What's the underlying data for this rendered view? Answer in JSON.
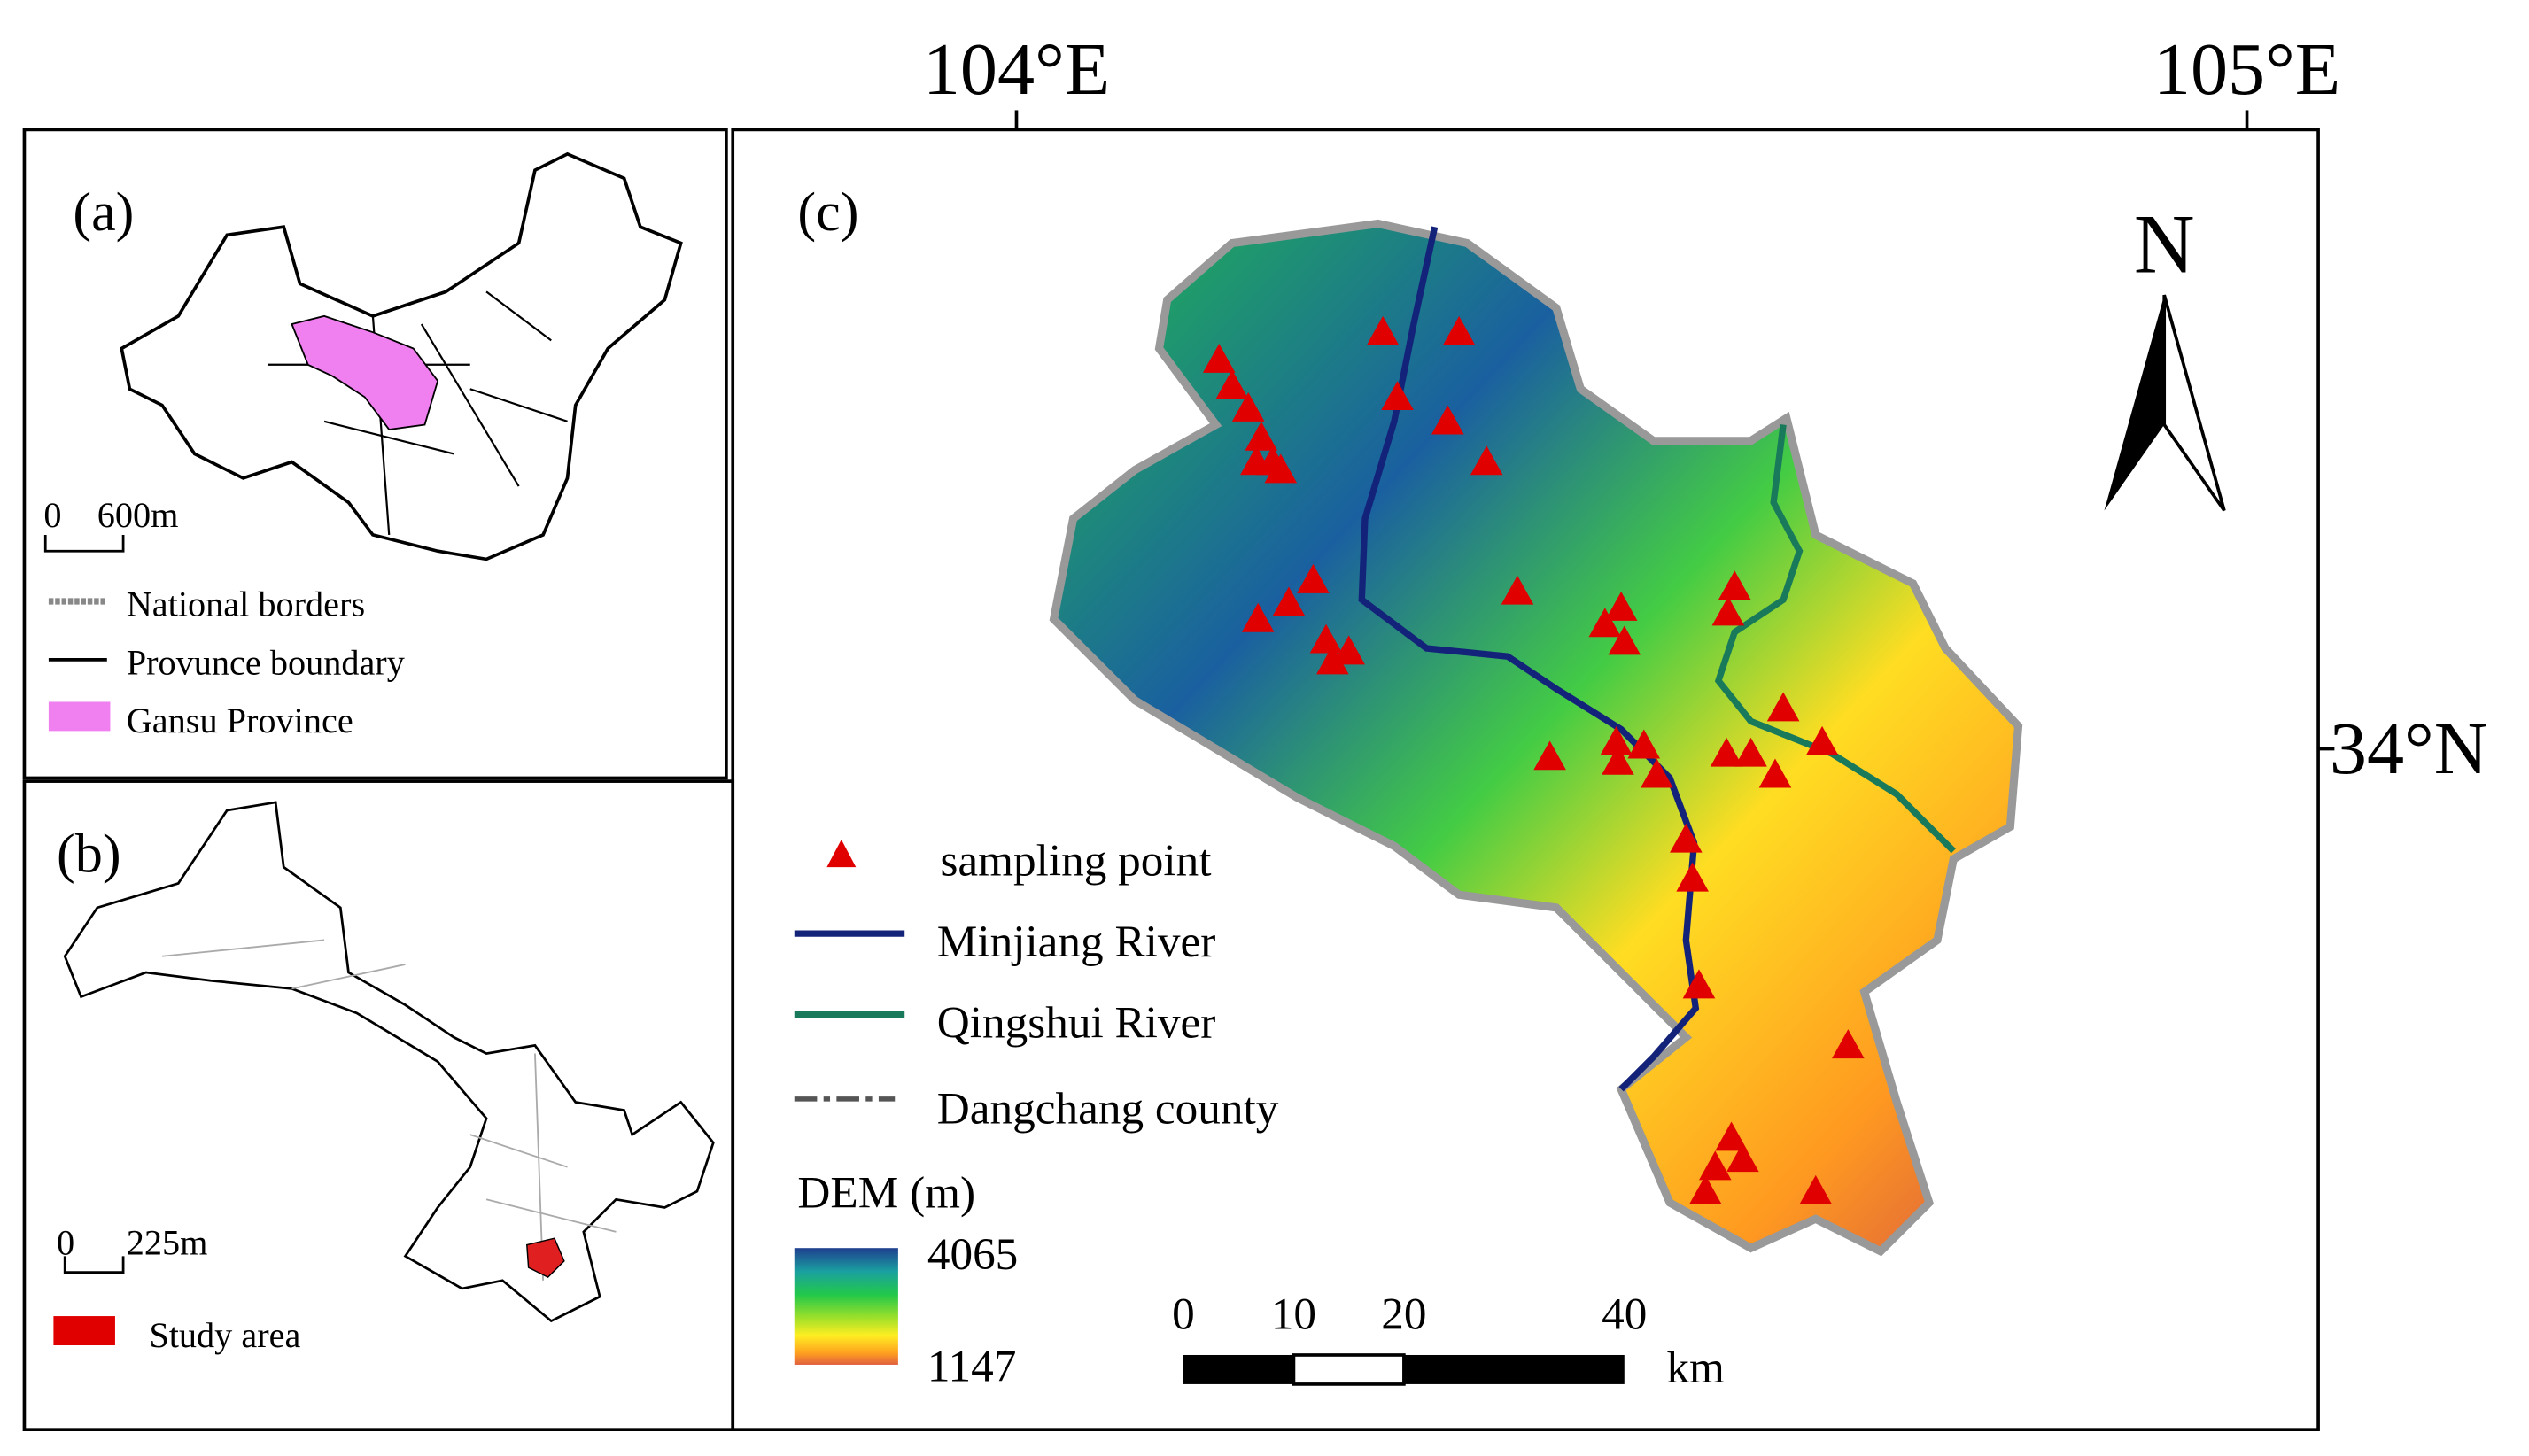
{
  "coordinates": {
    "lon_left": "104°E",
    "lon_right": "105°E",
    "lat": "34°N"
  },
  "panel_a": {
    "label": "(a)",
    "scale": {
      "start": "0",
      "end": "600m"
    },
    "legend": [
      "National borders",
      "Provunce boundary",
      "Gansu Province"
    ]
  },
  "panel_b": {
    "label": "(b)",
    "scale": {
      "start": "0",
      "end": "225m"
    },
    "legend": [
      "Study area"
    ]
  },
  "panel_c": {
    "label": "(c)",
    "north": "N",
    "legend": [
      "sampling point",
      "Minjiang River",
      "Qingshui River",
      "Dangchang county"
    ],
    "dem": {
      "title": "DEM (m)",
      "max": 4065,
      "min": 1147
    },
    "scale_bar": {
      "ticks": [
        0,
        10,
        20,
        40
      ],
      "unit": "km"
    }
  }
}
